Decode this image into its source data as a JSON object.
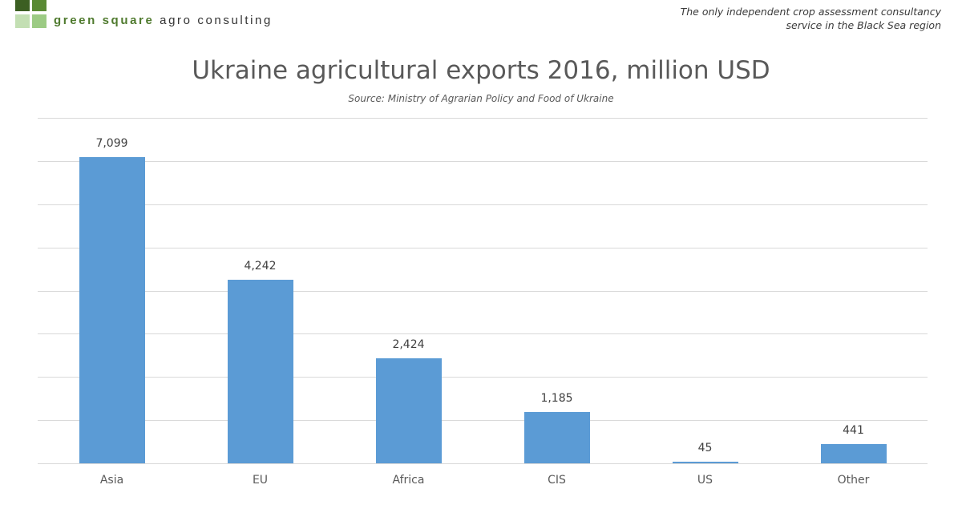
{
  "branding": {
    "company_bold": "green square",
    "company_rest": " agro consulting",
    "logo_colors": [
      "#3c5f22",
      "#5a8a34",
      "#c3dfb3",
      "#9ccb84"
    ],
    "tagline_line1": "The only independent crop assessment consultancy",
    "tagline_line2": "service in the Black Sea region"
  },
  "chart_data": {
    "type": "bar",
    "title": "Ukraine agricultural exports 2016, million USD",
    "subtitle": "Source: Ministry of Agrarian Policy and Food of Ukraine",
    "categories": [
      "Asia",
      "EU",
      "Africa",
      "CIS",
      "US",
      "Other"
    ],
    "values": [
      7099,
      4242,
      2424,
      1185,
      45,
      441
    ],
    "value_labels": [
      "7,099",
      "4,242",
      "2,424",
      "1,185",
      "45",
      "441"
    ],
    "xlabel": "",
    "ylabel": "",
    "ylim": [
      0,
      8000
    ],
    "y_gridlines": [
      0,
      1000,
      2000,
      3000,
      4000,
      5000,
      6000,
      7000,
      8000
    ],
    "y_tick_labels_visible": false,
    "grid": true,
    "legend": "none",
    "bar_color": "#5b9bd5"
  }
}
